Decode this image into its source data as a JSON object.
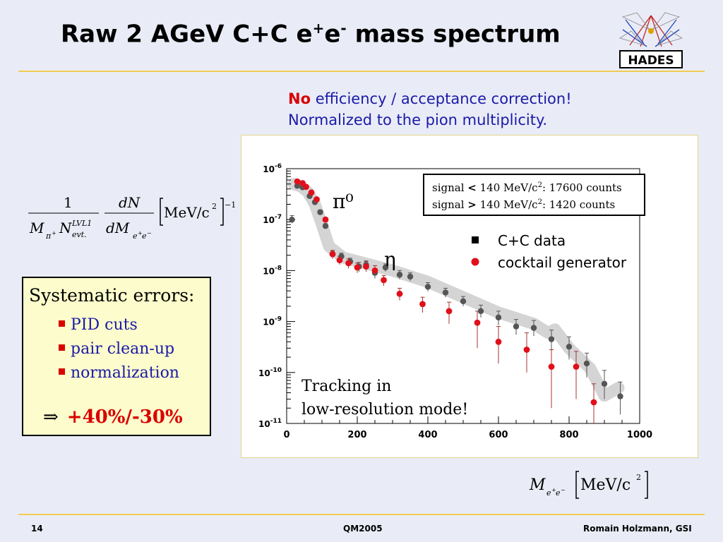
{
  "slide": {
    "title_pre": "Raw 2 AGeV C+C  e",
    "title_sup1": "+",
    "title_mid": "e",
    "title_sup2": "-",
    "title_post": " mass spectrum",
    "logo_text": "HADES",
    "note_bold": "No",
    "note_line1_rest": " efficiency / acceptance correction!",
    "note_line2": "Normalized to the pion multiplicity.",
    "yaxis_formula": {
      "num1": "1",
      "den1_M": "M",
      "den1_pi": "π",
      "den1_pi_sup": "+",
      "den1_N": "N",
      "den1_sup": "LVL1",
      "den1_sub": "evt.",
      "num2": "dN",
      "den2": "dM",
      "den2_sub_e1": "e",
      "den2_sub_p": "+",
      "den2_sub_e2": "e",
      "den2_sub_m": "−",
      "unit": "MeV/c",
      "unit_sup": "2",
      "exp": "−1"
    },
    "xaxis_formula": {
      "M": "M",
      "sub_e1": "e",
      "sub_p": "+",
      "sub_e2": "e",
      "sub_m": "−",
      "unit": "MeV/c",
      "unit_sup": "2"
    },
    "systematics": {
      "heading": "Systematic errors:",
      "items": [
        "PID cuts",
        "pair clean-up",
        "normalization"
      ],
      "arrow": "⇒",
      "result": "+40%/-30%"
    },
    "footer": {
      "page": "14",
      "conference": "QM2005",
      "author": "Romain Holzmann, GSI"
    }
  },
  "chart_data": {
    "type": "scatter",
    "x_range": [
      0,
      1000
    ],
    "y_range": [
      1e-11,
      1e-06
    ],
    "y_log": true,
    "x_ticks": [
      "0",
      "200",
      "400",
      "600",
      "800",
      "1000"
    ],
    "y_ticks": [
      "10^-11",
      "10^-10",
      "10^-9",
      "10^-8",
      "10^-7",
      "10^-6"
    ],
    "annotations": {
      "pi0": "π⁰",
      "eta": "η",
      "tracking_line1": "Tracking in",
      "tracking_line2": "low-resolution mode!"
    },
    "info_box": {
      "line1_pre": "signal ",
      "line1_op": "<",
      "line1_mid": " 140 MeV/c",
      "line1_sup": "2",
      "line1_post": ":  17600 counts",
      "line2_pre": "signal ",
      "line2_op": ">",
      "line2_mid": " 140 MeV/c",
      "line2_sup": "2",
      "line2_post": ":    1420 counts"
    },
    "legend": {
      "placement": "right",
      "entries": [
        {
          "symbol": "■",
          "label": "C+C data",
          "color": "#000000"
        },
        {
          "symbol": "●",
          "label": "cocktail generator",
          "color": "#e0101a"
        }
      ]
    },
    "band": [
      [
        20,
        5e-07
      ],
      [
        40,
        4.5e-07
      ],
      [
        60,
        3.5e-07
      ],
      [
        80,
        2e-07
      ],
      [
        100,
        8e-08
      ],
      [
        120,
        3e-08
      ],
      [
        160,
        1.8e-08
      ],
      [
        220,
        1.4e-08
      ],
      [
        300,
        1e-08
      ],
      [
        400,
        6e-09
      ],
      [
        500,
        3e-09
      ],
      [
        600,
        1.5e-09
      ],
      [
        700,
        9e-10
      ],
      [
        740,
        6e-10
      ],
      [
        760,
        7e-10
      ],
      [
        800,
        3e-10
      ],
      [
        860,
        1.2e-10
      ],
      [
        900,
        3.5e-11
      ],
      [
        940,
        5e-11
      ]
    ],
    "series": [
      {
        "name": "C+C data",
        "color": "#000000",
        "points": [
          [
            15,
            1e-07,
            1.2e-07,
            8.5e-08
          ],
          [
            30,
            4.6e-07,
            4.9e-07,
            4.3e-07
          ],
          [
            45,
            4.3e-07,
            4.6e-07,
            4e-07
          ],
          [
            65,
            2.9e-07,
            3.1e-07,
            2.7e-07
          ],
          [
            80,
            2.2e-07,
            2.4e-07,
            2e-07
          ],
          [
            95,
            1.4e-07,
            1.55e-07,
            1.25e-07
          ],
          [
            110,
            7.5e-08,
            8.3e-08,
            6.7e-08
          ],
          [
            130,
            2.1e-08,
            2.4e-08,
            1.8e-08
          ],
          [
            155,
            1.9e-08,
            2.2e-08,
            1.65e-08
          ],
          [
            180,
            1.5e-08,
            1.75e-08,
            1.25e-08
          ],
          [
            205,
            1.2e-08,
            1.45e-08,
            9.5e-09
          ],
          [
            225,
            1.3e-08,
            1.55e-08,
            1.05e-08
          ],
          [
            250,
            9e-09,
            1.1e-08,
            7e-09
          ],
          [
            280,
            1.15e-08,
            1.35e-08,
            9.5e-09
          ],
          [
            320,
            8.3e-09,
            1e-08,
            6.8e-09
          ],
          [
            350,
            7.6e-09,
            9e-09,
            6.2e-09
          ],
          [
            400,
            4.8e-09,
            5.8e-09,
            3.9e-09
          ],
          [
            450,
            3.7e-09,
            4.5e-09,
            3e-09
          ],
          [
            500,
            2.5e-09,
            3.1e-09,
            2e-09
          ],
          [
            550,
            1.6e-09,
            2.1e-09,
            1.2e-09
          ],
          [
            600,
            1.2e-09,
            1.6e-09,
            8.5e-10
          ],
          [
            650,
            8e-10,
            1.1e-09,
            5.5e-10
          ],
          [
            700,
            7.5e-10,
            1.05e-09,
            5.2e-10
          ],
          [
            750,
            4.5e-10,
            6.8e-10,
            2.8e-10
          ],
          [
            800,
            3.2e-10,
            5e-10,
            1.8e-10
          ],
          [
            850,
            1.5e-10,
            2.4e-10,
            8e-11
          ],
          [
            900,
            6e-11,
            1.1e-10,
            3e-11
          ],
          [
            945,
            3.4e-11,
            6.5e-11,
            1.5e-11
          ]
        ]
      },
      {
        "name": "cocktail generator",
        "color": "#e0101a",
        "points": [
          [
            30,
            5.6e-07,
            6e-07,
            5.2e-07
          ],
          [
            45,
            5.2e-07,
            5.6e-07,
            4.8e-07
          ],
          [
            55,
            4.4e-07,
            4.7e-07,
            4.1e-07
          ],
          [
            70,
            3.4e-07,
            3.7e-07,
            3.1e-07
          ],
          [
            85,
            2.5e-07,
            2.7e-07,
            2.3e-07
          ],
          [
            110,
            1e-07,
            1.1e-07,
            9e-08
          ],
          [
            130,
            2.1e-08,
            2.5e-08,
            1.7e-08
          ],
          [
            150,
            1.6e-08,
            1.9e-08,
            1.3e-08
          ],
          [
            175,
            1.4e-08,
            1.7e-08,
            1.1e-08
          ],
          [
            200,
            1.15e-08,
            1.4e-08,
            9e-09
          ],
          [
            225,
            1.2e-08,
            1.5e-08,
            9.5e-09
          ],
          [
            250,
            1e-08,
            1.25e-08,
            8e-09
          ],
          [
            275,
            6.5e-09,
            8e-09,
            5e-09
          ],
          [
            320,
            3.5e-09,
            4.5e-09,
            2.6e-09
          ],
          [
            385,
            2.2e-09,
            3e-09,
            1.5e-09
          ],
          [
            460,
            1.6e-09,
            2.4e-09,
            9e-10
          ],
          [
            540,
            9.5e-10,
            1.6e-09,
            3e-10
          ],
          [
            600,
            4e-10,
            8e-10,
            1.5e-10
          ],
          [
            680,
            2.8e-10,
            6e-10,
            1e-10
          ],
          [
            750,
            1.3e-10,
            2.8e-10,
            2e-11
          ],
          [
            820,
            1.3e-10,
            2.6e-10,
            3e-11
          ],
          [
            870,
            2.6e-11,
            6e-11,
            1e-11
          ]
        ]
      }
    ]
  }
}
